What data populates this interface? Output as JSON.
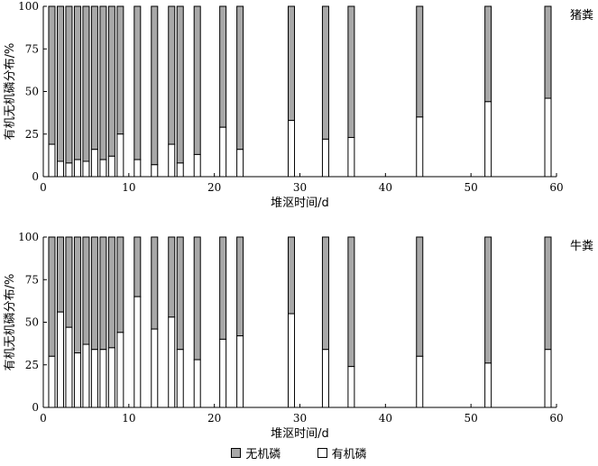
{
  "colors": {
    "inorganic": "#a8a8a8",
    "organic": "#ffffff",
    "stroke": "#000000"
  },
  "legend": {
    "inorganic_label": "无机磷",
    "organic_label": "有机磷"
  },
  "chart_data": [
    {
      "type": "bar",
      "stacked": true,
      "panel_label": "猪粪",
      "xlabel": "堆沤时间/d",
      "ylabel": "有机无机磷分布/%",
      "xlim": [
        0,
        60
      ],
      "ylim": [
        0,
        100
      ],
      "xticks": [
        0,
        10,
        20,
        30,
        40,
        50,
        60
      ],
      "yticks": [
        0,
        25,
        50,
        75,
        100
      ],
      "x": [
        1,
        2,
        3,
        4,
        5,
        6,
        7,
        8,
        9,
        11,
        13,
        15,
        16,
        18,
        21,
        23,
        29,
        33,
        36,
        44,
        52,
        59
      ],
      "series": [
        {
          "name": "有机磷",
          "values": [
            19,
            9,
            8,
            10,
            9,
            16,
            10,
            12,
            25,
            10,
            7,
            19,
            8,
            13,
            29,
            16,
            33,
            22,
            23,
            35,
            44,
            46
          ]
        },
        {
          "name": "无机磷",
          "values": [
            81,
            91,
            92,
            90,
            91,
            84,
            90,
            88,
            75,
            90,
            93,
            81,
            92,
            87,
            71,
            84,
            67,
            78,
            77,
            65,
            56,
            54
          ]
        }
      ]
    },
    {
      "type": "bar",
      "stacked": true,
      "panel_label": "牛粪",
      "xlabel": "堆沤时间/d",
      "ylabel": "有机无机磷分布/%",
      "xlim": [
        0,
        60
      ],
      "ylim": [
        0,
        100
      ],
      "xticks": [
        0,
        10,
        20,
        30,
        40,
        50,
        60
      ],
      "yticks": [
        0,
        25,
        50,
        75,
        100
      ],
      "x": [
        1,
        2,
        3,
        4,
        5,
        6,
        7,
        8,
        9,
        11,
        13,
        15,
        16,
        18,
        21,
        23,
        29,
        33,
        36,
        44,
        52,
        59
      ],
      "series": [
        {
          "name": "有机磷",
          "values": [
            30,
            56,
            47,
            32,
            37,
            34,
            34,
            35,
            44,
            65,
            46,
            53,
            34,
            28,
            40,
            42,
            55,
            34,
            24,
            30,
            26,
            34
          ]
        },
        {
          "name": "无机磷",
          "values": [
            70,
            44,
            53,
            68,
            63,
            66,
            66,
            65,
            56,
            35,
            54,
            47,
            66,
            72,
            60,
            58,
            45,
            66,
            76,
            70,
            74,
            66
          ]
        }
      ]
    }
  ]
}
